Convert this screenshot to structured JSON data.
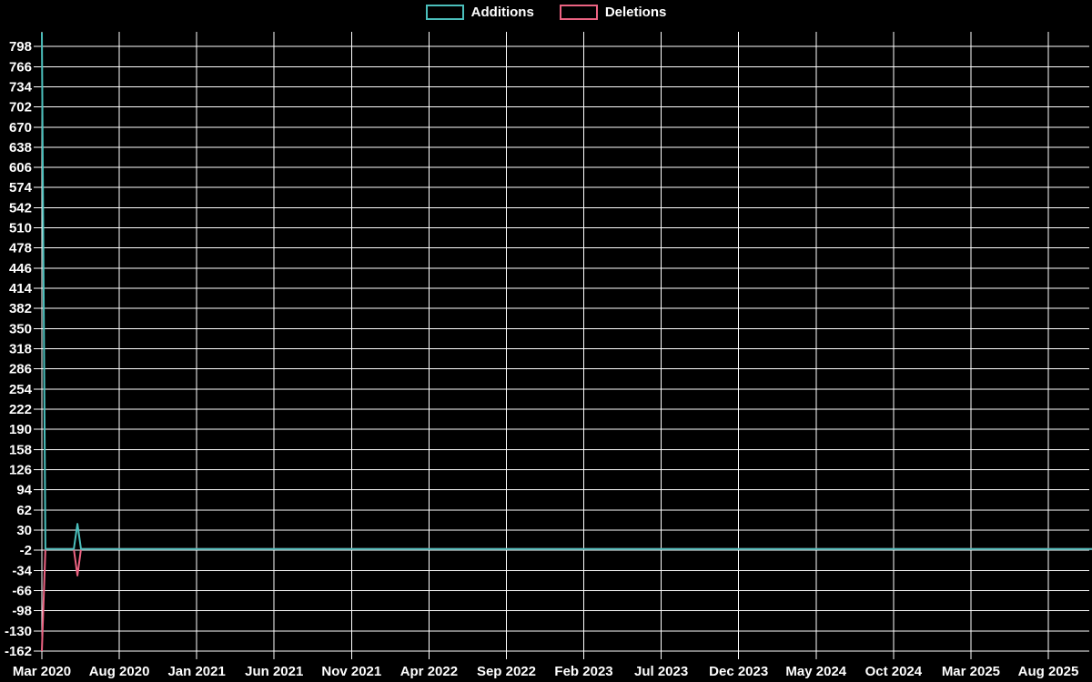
{
  "legend": {
    "items": [
      {
        "label": "Additions",
        "color": "#4bbfbc"
      },
      {
        "label": "Deletions",
        "color": "#ec6382"
      }
    ]
  },
  "chart_data": {
    "type": "line",
    "title": "",
    "xlabel": "",
    "ylabel": "",
    "background": "#000000",
    "grid_color": "#ffffff",
    "text_color": "#ffffff",
    "grid": "on",
    "legend_position": "top-center",
    "x_axis": {
      "tick_labels": [
        "Mar 2020",
        "Aug 2020",
        "Jan 2021",
        "Jun 2021",
        "Nov 2021",
        "Apr 2022",
        "Sep 2022",
        "Feb 2023",
        "Jul 2023",
        "Dec 2023",
        "May 2024",
        "Oct 2024",
        "Mar 2025",
        "Aug 2025"
      ],
      "tick_interval_months": 5,
      "start": "2020-03-01",
      "end_visible": "2025-10-26"
    },
    "y_axis": {
      "tick_values": [
        798,
        766,
        734,
        702,
        670,
        638,
        606,
        574,
        542,
        510,
        478,
        446,
        414,
        382,
        350,
        318,
        286,
        254,
        222,
        190,
        158,
        126,
        94,
        62,
        30,
        -2,
        -34,
        -66,
        -98,
        -130,
        -162
      ],
      "tick_step": 32,
      "min": -162,
      "max": 822
    },
    "series": [
      {
        "name": "Additions",
        "color": "#4bbfbc",
        "note": "weekly values; 0 for all weeks not listed",
        "points": [
          [
            "2020-03-01",
            820
          ],
          [
            "2020-03-08",
            0
          ],
          [
            "2020-05-03",
            0
          ],
          [
            "2020-05-10",
            40
          ],
          [
            "2020-05-17",
            0
          ],
          [
            "2025-10-26",
            0
          ]
        ]
      },
      {
        "name": "Deletions",
        "color": "#ec6382",
        "note": "weekly values; 0 for all weeks not listed",
        "points": [
          [
            "2020-03-01",
            -162
          ],
          [
            "2020-03-08",
            0
          ],
          [
            "2020-05-03",
            0
          ],
          [
            "2020-05-10",
            -42
          ],
          [
            "2020-05-17",
            0
          ],
          [
            "2025-10-26",
            0
          ]
        ]
      }
    ]
  }
}
